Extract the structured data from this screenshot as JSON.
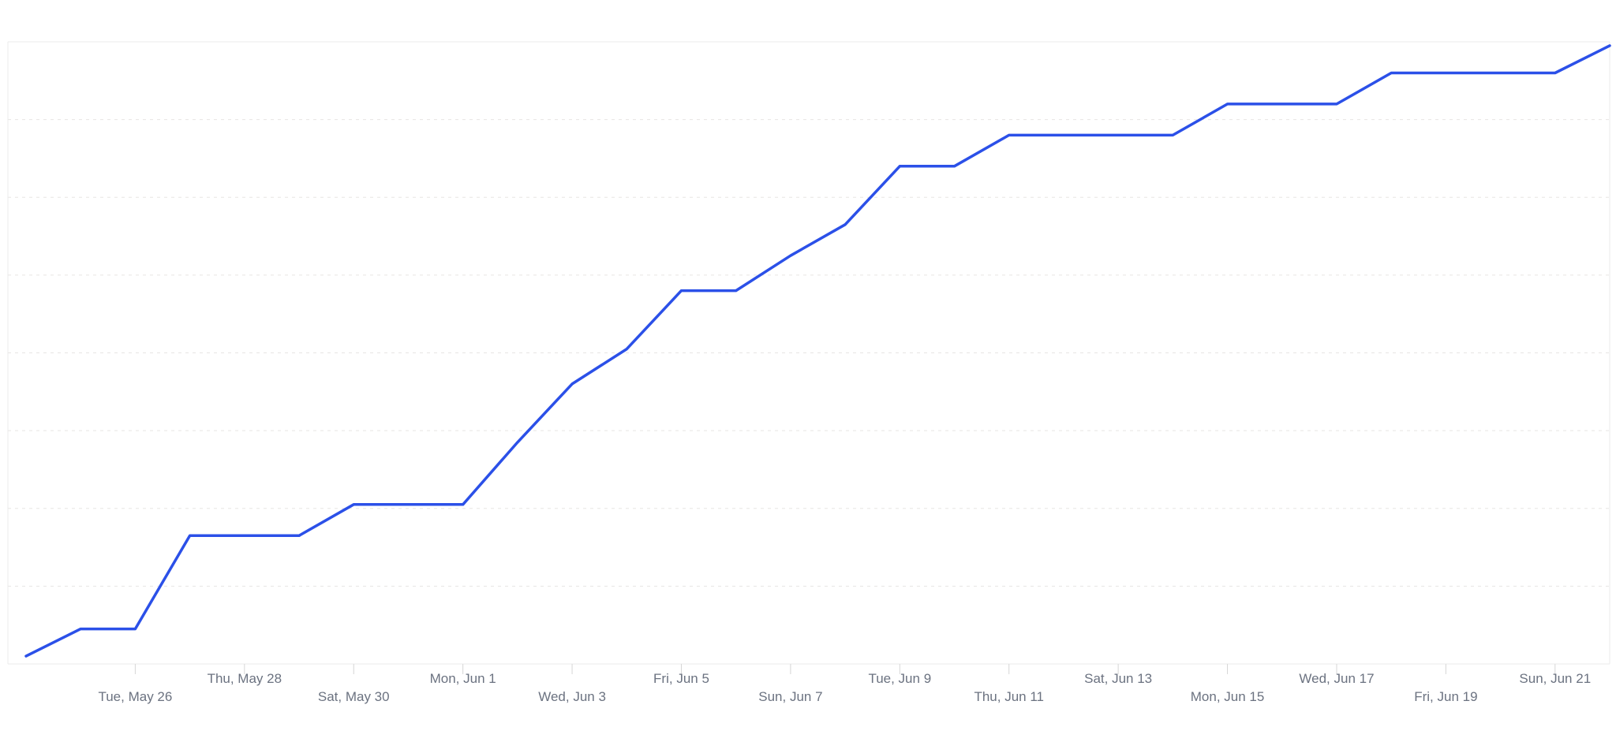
{
  "page": {
    "background": "#ffffff"
  },
  "chart_data": {
    "type": "line",
    "title": "",
    "xlabel": "",
    "ylabel": "",
    "legend": "none",
    "grid": "horizontal-dashed",
    "ylim": [
      0,
      8
    ],
    "gridline_values": [
      1,
      2,
      3,
      4,
      5,
      6,
      7,
      8
    ],
    "series_name": "cumulative-value",
    "x": [
      "May 24",
      "May 25",
      "May 26",
      "May 27",
      "May 28",
      "May 29",
      "May 30",
      "May 31",
      "Jun 1",
      "Jun 2",
      "Jun 3",
      "Jun 4",
      "Jun 5",
      "Jun 6",
      "Jun 7",
      "Jun 8",
      "Jun 9",
      "Jun 10",
      "Jun 11",
      "Jun 12",
      "Jun 13",
      "Jun 14",
      "Jun 15",
      "Jun 16",
      "Jun 17",
      "Jun 18",
      "Jun 19",
      "Jun 20",
      "Jun 21",
      "Jun 22"
    ],
    "values": [
      0.1,
      0.45,
      0.45,
      1.65,
      1.65,
      1.65,
      2.05,
      2.05,
      2.05,
      2.85,
      3.6,
      4.05,
      4.8,
      4.8,
      5.25,
      5.65,
      6.4,
      6.4,
      6.8,
      6.8,
      6.8,
      6.8,
      7.2,
      7.2,
      7.2,
      7.6,
      7.6,
      7.6,
      7.6,
      7.95
    ],
    "x_ticks": [
      {
        "label": "Tue, May 26",
        "day_index": 2,
        "row": 2
      },
      {
        "label": "Thu, May 28",
        "day_index": 4,
        "row": 1
      },
      {
        "label": "Sat, May 30",
        "day_index": 6,
        "row": 2
      },
      {
        "label": "Mon, Jun 1",
        "day_index": 8,
        "row": 1
      },
      {
        "label": "Wed, Jun 3",
        "day_index": 10,
        "row": 2
      },
      {
        "label": "Fri, Jun 5",
        "day_index": 12,
        "row": 1
      },
      {
        "label": "Sun, Jun 7",
        "day_index": 14,
        "row": 2
      },
      {
        "label": "Tue, Jun 9",
        "day_index": 16,
        "row": 1
      },
      {
        "label": "Thu, Jun 11",
        "day_index": 18,
        "row": 2
      },
      {
        "label": "Sat, Jun 13",
        "day_index": 20,
        "row": 1
      },
      {
        "label": "Mon, Jun 15",
        "day_index": 22,
        "row": 2
      },
      {
        "label": "Wed, Jun 17",
        "day_index": 24,
        "row": 1
      },
      {
        "label": "Fri, Jun 19",
        "day_index": 26,
        "row": 2
      },
      {
        "label": "Sun, Jun 21",
        "day_index": 28,
        "row": 1
      }
    ],
    "colors": {
      "line": "#2b50e8",
      "grid": "#e7e5e4",
      "plot_border": "#ebebeb",
      "tick": "#d6d6d6",
      "label": "#6b7280",
      "background": "#ffffff"
    }
  }
}
